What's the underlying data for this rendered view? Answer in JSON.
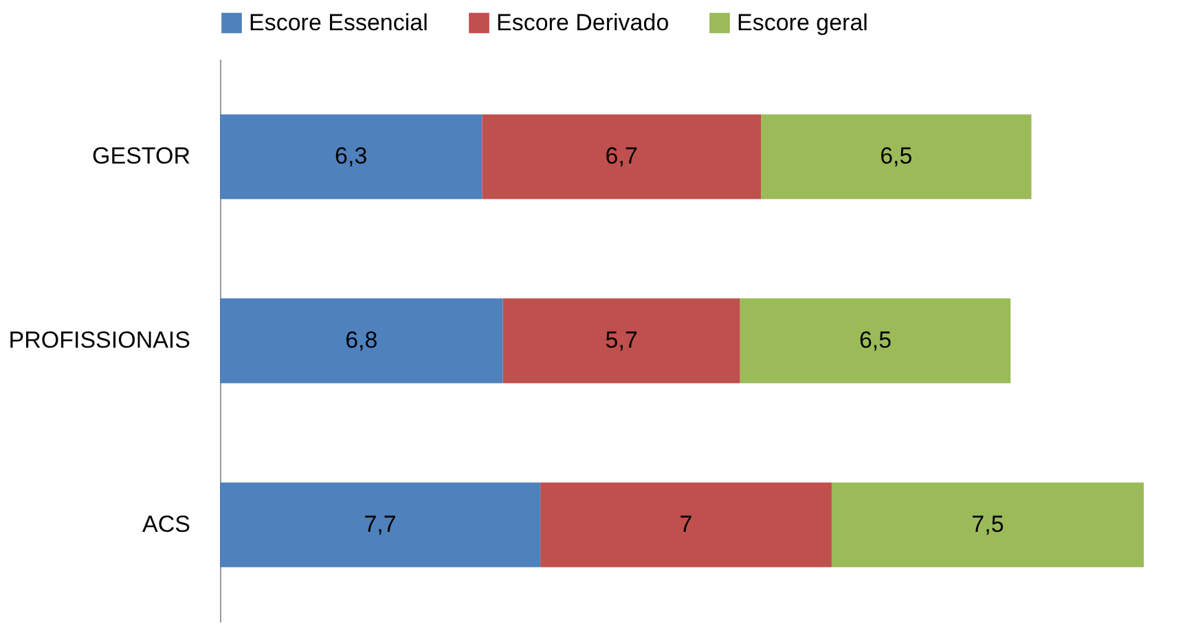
{
  "chart_data": {
    "type": "bar",
    "orientation": "horizontal",
    "stacked": true,
    "legend": "top",
    "categories": [
      "GESTOR",
      "PROFISSIONAIS",
      "ACS"
    ],
    "series": [
      {
        "name": "Escore Essencial",
        "color": "#4f81bd",
        "values": [
          6.3,
          6.8,
          7.7
        ],
        "value_labels": [
          "6,3",
          "6,8",
          "7,7"
        ]
      },
      {
        "name": "Escore Derivado",
        "color": "#c0504d",
        "values": [
          6.7,
          5.7,
          7
        ],
        "value_labels": [
          "6,7",
          "5,7",
          "7"
        ]
      },
      {
        "name": "Escore geral",
        "color": "#9bbb59",
        "values": [
          6.5,
          6.5,
          7.5
        ],
        "value_labels": [
          "6,5",
          "6,5",
          "7,5"
        ]
      }
    ]
  }
}
